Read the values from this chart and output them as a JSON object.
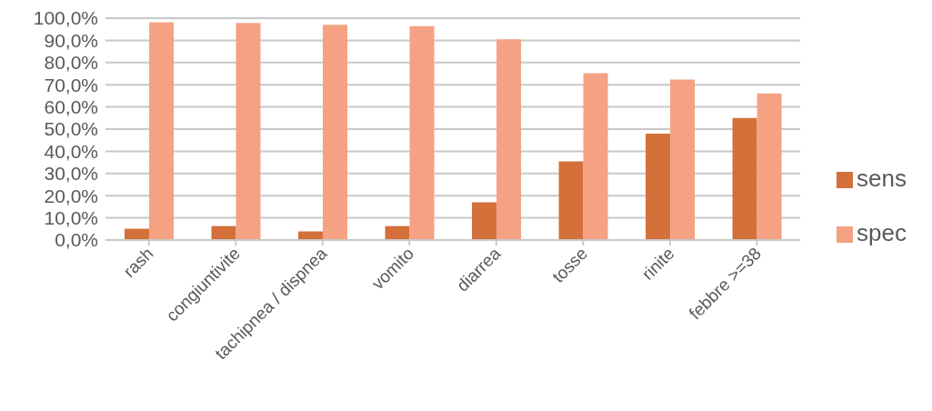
{
  "chart_data": {
    "type": "bar",
    "categories": [
      "rash",
      "congiuntivite",
      "tachipnea / dispnea",
      "vomito",
      "diarrea",
      "tosse",
      "rinite",
      "febbre >=38"
    ],
    "series": [
      {
        "name": "sens",
        "color": "#d4703a",
        "values": [
          5.1,
          6.3,
          3.9,
          6.3,
          17.0,
          35.4,
          47.9,
          55.0
        ]
      },
      {
        "name": "spec",
        "color": "#f4a283",
        "values": [
          98.2,
          97.8,
          97.0,
          96.4,
          90.5,
          75.2,
          72.3,
          66.1
        ]
      }
    ],
    "ylim": [
      0,
      100
    ],
    "yticks": [
      {
        "value": 0,
        "label": "0,0%"
      },
      {
        "value": 10,
        "label": "10,0%"
      },
      {
        "value": 20,
        "label": "20,0%"
      },
      {
        "value": 30,
        "label": "30,0%"
      },
      {
        "value": 40,
        "label": "40,0%"
      },
      {
        "value": 50,
        "label": "50,0%"
      },
      {
        "value": 60,
        "label": "60,0%"
      },
      {
        "value": 70,
        "label": "70,0%"
      },
      {
        "value": 80,
        "label": "80,0%"
      },
      {
        "value": 90,
        "label": "90,0%"
      },
      {
        "value": 100,
        "label": "100,0%"
      }
    ],
    "grid": "y",
    "legend": "right"
  }
}
